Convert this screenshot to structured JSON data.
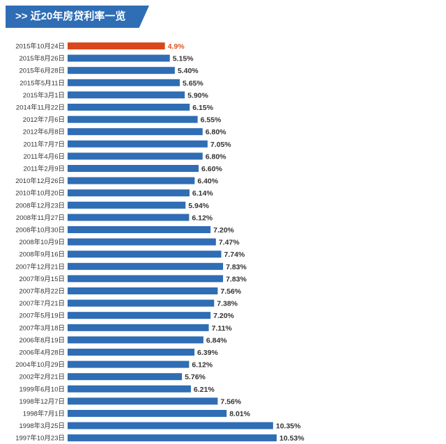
{
  "header": {
    "title": ">> 近20年房贷利率一览"
  },
  "colors": {
    "bar": "#2f6db5",
    "highlight": "#d9481c",
    "label": "#333333",
    "highlight_text": "#e0521f"
  },
  "chart_data": {
    "type": "bar",
    "orientation": "horizontal",
    "title": "近20年房贷利率一览",
    "categories": [
      "2015年10月24日",
      "2015年8月26日",
      "2015年6月28日",
      "2015年5月11日",
      "2015年3月1日",
      "2014年11月22日",
      "2012年7月6日",
      "2012年6月8日",
      "2011年7月7日",
      "2011年4月6日",
      "2011年2月9日",
      "2010年12月26日",
      "2010年10月20日",
      "2008年12月23日",
      "2008年11月27日",
      "2008年10月30日",
      "2008年10月9日",
      "2008年9月16日",
      "2007年12月21日",
      "2007年9月15日",
      "2007年8月22日",
      "2007年7月21日",
      "2007年5月19日",
      "2007年3月18日",
      "2006年8月19日",
      "2006年4月28日",
      "2004年10月29日",
      "2002年2月21日",
      "1999年6月10日",
      "1998年12月7日",
      "1998年7月1日",
      "1998年3月25日",
      "1997年10月23日"
    ],
    "values": [
      4.9,
      5.15,
      5.4,
      5.65,
      5.9,
      6.15,
      6.55,
      6.8,
      7.05,
      6.8,
      6.6,
      6.4,
      6.14,
      5.94,
      6.12,
      7.2,
      7.47,
      7.74,
      7.83,
      7.83,
      7.56,
      7.38,
      7.2,
      7.11,
      6.84,
      6.39,
      6.12,
      5.76,
      6.21,
      7.56,
      8.01,
      10.35,
      10.53
    ],
    "value_labels": [
      "4.9%",
      "5.15%",
      "5.40%",
      "5.65%",
      "5.90%",
      "6.15%",
      "6.55%",
      "6.80%",
      "7.05%",
      "6.80%",
      "6.60%",
      "6.40%",
      "6.14%",
      "5.94%",
      "6.12%",
      "7.20%",
      "7.47%",
      "7.74%",
      "7.83%",
      "7.83%",
      "7.56%",
      "7.38%",
      "7.20%",
      "7.11%",
      "6.84%",
      "6.39%",
      "6.12%",
      "5.76%",
      "6.21%",
      "7.56%",
      "8.01%",
      "10.35%",
      "10.53%"
    ],
    "highlight_index": 0,
    "unit": "%",
    "grid": false,
    "legend": "none"
  }
}
